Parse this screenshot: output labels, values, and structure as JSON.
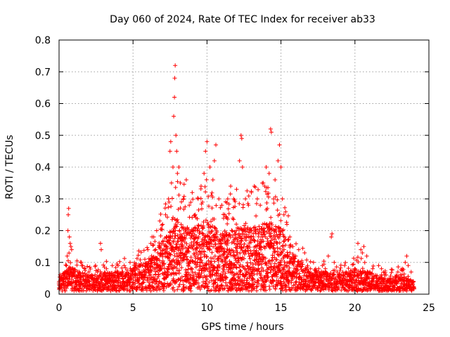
{
  "chart_data": {
    "type": "scatter",
    "title": "Day 060 of 2024, Rate Of TEC Index for receiver ab33",
    "xlabel": "GPS time / hours",
    "ylabel": "ROTI / TECUs",
    "xlim": [
      0,
      25
    ],
    "ylim": [
      0,
      0.8
    ],
    "xticks": [
      0,
      5,
      10,
      15,
      20,
      25
    ],
    "yticks": [
      0,
      0.1,
      0.2,
      0.3,
      0.4,
      0.5,
      0.6,
      0.7,
      0.8
    ],
    "xtick_labels": [
      "0",
      "5",
      "10",
      "15",
      "20",
      "25"
    ],
    "ytick_labels": [
      "0",
      "0.1",
      "0.2",
      "0.3",
      "0.4",
      "0.5",
      "0.6",
      "0.7",
      "0.8"
    ],
    "grid": true,
    "marker": "+",
    "color": "#ff0000",
    "series": [
      {
        "points": [
          [
            0.0,
            0.02
          ],
          [
            0.1,
            0.03
          ],
          [
            0.2,
            0.05
          ],
          [
            0.3,
            0.04
          ],
          [
            0.4,
            0.07
          ],
          [
            0.5,
            0.09
          ],
          [
            0.55,
            0.12
          ],
          [
            0.6,
            0.2
          ],
          [
            0.62,
            0.25
          ],
          [
            0.65,
            0.27
          ],
          [
            0.7,
            0.18
          ],
          [
            0.75,
            0.16
          ],
          [
            0.8,
            0.15
          ],
          [
            0.85,
            0.14
          ],
          [
            0.9,
            0.08
          ],
          [
            1.0,
            0.06
          ],
          [
            1.2,
            0.04
          ],
          [
            1.4,
            0.05
          ],
          [
            1.5,
            0.1
          ],
          [
            1.6,
            0.09
          ],
          [
            1.8,
            0.04
          ],
          [
            2.0,
            0.03
          ],
          [
            2.2,
            0.06
          ],
          [
            2.4,
            0.05
          ],
          [
            2.6,
            0.07
          ],
          [
            2.8,
            0.16
          ],
          [
            2.85,
            0.14
          ],
          [
            3.0,
            0.06
          ],
          [
            3.2,
            0.08
          ],
          [
            3.4,
            0.05
          ],
          [
            3.6,
            0.09
          ],
          [
            3.8,
            0.07
          ],
          [
            4.0,
            0.05
          ],
          [
            4.2,
            0.06
          ],
          [
            4.4,
            0.09
          ],
          [
            4.6,
            0.07
          ],
          [
            4.8,
            0.1
          ],
          [
            5.0,
            0.08
          ],
          [
            5.2,
            0.06
          ],
          [
            5.4,
            0.09
          ],
          [
            5.6,
            0.07
          ],
          [
            5.8,
            0.11
          ],
          [
            6.0,
            0.14
          ],
          [
            6.2,
            0.16
          ],
          [
            6.4,
            0.18
          ],
          [
            6.6,
            0.2
          ],
          [
            6.8,
            0.15
          ],
          [
            7.0,
            0.22
          ],
          [
            7.2,
            0.25
          ],
          [
            7.4,
            0.3
          ],
          [
            7.5,
            0.45
          ],
          [
            7.55,
            0.48
          ],
          [
            7.6,
            0.35
          ],
          [
            7.7,
            0.4
          ],
          [
            7.75,
            0.56
          ],
          [
            7.8,
            0.62
          ],
          [
            7.82,
            0.68
          ],
          [
            7.85,
            0.72
          ],
          [
            7.9,
            0.5
          ],
          [
            7.95,
            0.45
          ],
          [
            8.0,
            0.38
          ],
          [
            8.1,
            0.4
          ],
          [
            8.2,
            0.35
          ],
          [
            8.4,
            0.3
          ],
          [
            8.6,
            0.36
          ],
          [
            8.8,
            0.28
          ],
          [
            9.0,
            0.32
          ],
          [
            9.2,
            0.25
          ],
          [
            9.4,
            0.3
          ],
          [
            9.6,
            0.34
          ],
          [
            9.8,
            0.38
          ],
          [
            9.9,
            0.45
          ],
          [
            10.0,
            0.48
          ],
          [
            10.2,
            0.4
          ],
          [
            10.4,
            0.36
          ],
          [
            10.5,
            0.42
          ],
          [
            10.6,
            0.47
          ],
          [
            10.8,
            0.3
          ],
          [
            11.0,
            0.28
          ],
          [
            11.2,
            0.25
          ],
          [
            11.4,
            0.3
          ],
          [
            11.6,
            0.34
          ],
          [
            11.8,
            0.3
          ],
          [
            12.0,
            0.33
          ],
          [
            12.2,
            0.42
          ],
          [
            12.3,
            0.5
          ],
          [
            12.35,
            0.49
          ],
          [
            12.4,
            0.4
          ],
          [
            12.6,
            0.3
          ],
          [
            12.8,
            0.28
          ],
          [
            13.0,
            0.32
          ],
          [
            13.2,
            0.34
          ],
          [
            13.4,
            0.3
          ],
          [
            13.6,
            0.28
          ],
          [
            13.8,
            0.35
          ],
          [
            14.0,
            0.4
          ],
          [
            14.2,
            0.38
          ],
          [
            14.3,
            0.52
          ],
          [
            14.35,
            0.51
          ],
          [
            14.5,
            0.3
          ],
          [
            14.6,
            0.36
          ],
          [
            14.8,
            0.42
          ],
          [
            14.9,
            0.47
          ],
          [
            15.0,
            0.4
          ],
          [
            15.1,
            0.3
          ],
          [
            15.2,
            0.25
          ],
          [
            15.4,
            0.22
          ],
          [
            15.6,
            0.18
          ],
          [
            15.8,
            0.15
          ],
          [
            16.0,
            0.12
          ],
          [
            16.2,
            0.14
          ],
          [
            16.4,
            0.1
          ],
          [
            16.6,
            0.13
          ],
          [
            16.8,
            0.09
          ],
          [
            17.0,
            0.08
          ],
          [
            17.2,
            0.1
          ],
          [
            17.4,
            0.07
          ],
          [
            17.6,
            0.06
          ],
          [
            17.8,
            0.09
          ],
          [
            18.0,
            0.08
          ],
          [
            18.2,
            0.12
          ],
          [
            18.4,
            0.18
          ],
          [
            18.45,
            0.19
          ],
          [
            18.6,
            0.1
          ],
          [
            18.8,
            0.07
          ],
          [
            19.0,
            0.06
          ],
          [
            19.2,
            0.05
          ],
          [
            19.4,
            0.07
          ],
          [
            19.6,
            0.06
          ],
          [
            19.8,
            0.05
          ],
          [
            20.0,
            0.08
          ],
          [
            20.2,
            0.16
          ],
          [
            20.4,
            0.14
          ],
          [
            20.5,
            0.13
          ],
          [
            20.6,
            0.15
          ],
          [
            20.8,
            0.12
          ],
          [
            21.0,
            0.07
          ],
          [
            21.2,
            0.08
          ],
          [
            21.4,
            0.06
          ],
          [
            21.6,
            0.09
          ],
          [
            21.8,
            0.05
          ],
          [
            22.0,
            0.06
          ],
          [
            22.2,
            0.04
          ],
          [
            22.4,
            0.05
          ],
          [
            22.6,
            0.04
          ],
          [
            22.8,
            0.06
          ],
          [
            23.0,
            0.05
          ],
          [
            23.2,
            0.08
          ],
          [
            23.4,
            0.1
          ],
          [
            23.5,
            0.12
          ],
          [
            23.6,
            0.09
          ],
          [
            23.8,
            0.07
          ],
          [
            24.0,
            0.02
          ]
        ]
      }
    ],
    "envelope": [
      [
        0,
        0.03
      ],
      [
        0.5,
        0.08
      ],
      [
        1,
        0.07
      ],
      [
        2,
        0.05
      ],
      [
        3,
        0.06
      ],
      [
        4,
        0.06
      ],
      [
        5,
        0.07
      ],
      [
        6,
        0.1
      ],
      [
        7,
        0.16
      ],
      [
        8,
        0.22
      ],
      [
        9,
        0.2
      ],
      [
        10,
        0.22
      ],
      [
        11,
        0.18
      ],
      [
        12,
        0.2
      ],
      [
        13,
        0.2
      ],
      [
        14,
        0.22
      ],
      [
        15,
        0.2
      ],
      [
        16,
        0.1
      ],
      [
        17,
        0.07
      ],
      [
        18,
        0.06
      ],
      [
        19,
        0.05
      ],
      [
        20,
        0.07
      ],
      [
        21,
        0.06
      ],
      [
        22,
        0.04
      ],
      [
        23,
        0.05
      ],
      [
        24,
        0.03
      ]
    ]
  }
}
